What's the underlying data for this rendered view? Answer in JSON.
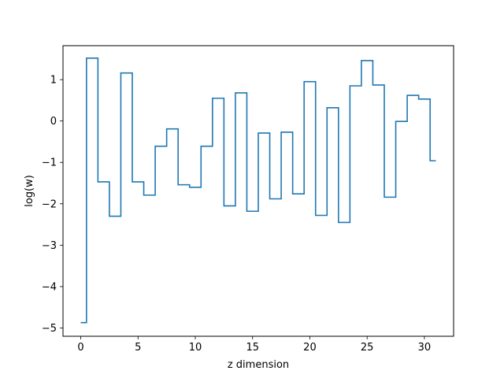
{
  "chart_data": {
    "type": "line",
    "drawstyle": "steps-mid",
    "title": "",
    "xlabel": "z dimension",
    "ylabel": "log(w)",
    "xlim": [
      -1.55,
      32.55
    ],
    "ylim": [
      -5.2,
      1.82
    ],
    "xticks": [
      0,
      5,
      10,
      15,
      20,
      25,
      30
    ],
    "yticks": [
      -5,
      -4,
      -3,
      -2,
      -1,
      0,
      1
    ],
    "ytick_labels": [
      "−5",
      "−4",
      "−3",
      "−2",
      "−1",
      "0",
      "1"
    ],
    "grid": false,
    "line_color": "#1f77b4",
    "series": [
      {
        "x": [
          0,
          1,
          2,
          3,
          4,
          5,
          6,
          7,
          8,
          9,
          10,
          11,
          12,
          13,
          14,
          15,
          16,
          17,
          18,
          19,
          20,
          21,
          22,
          23,
          24,
          25,
          26,
          27,
          28,
          29,
          30,
          31
        ],
        "values": [
          -4.87,
          1.52,
          -1.47,
          -2.3,
          1.16,
          -1.47,
          -1.79,
          -0.61,
          -0.19,
          -1.54,
          -1.6,
          -0.61,
          0.55,
          -2.05,
          0.68,
          -2.18,
          -0.29,
          -1.88,
          -0.27,
          -1.76,
          0.95,
          -2.28,
          0.32,
          -2.45,
          0.85,
          1.46,
          0.87,
          -1.84,
          -0.01,
          0.62,
          0.53,
          -0.96
        ]
      }
    ]
  }
}
